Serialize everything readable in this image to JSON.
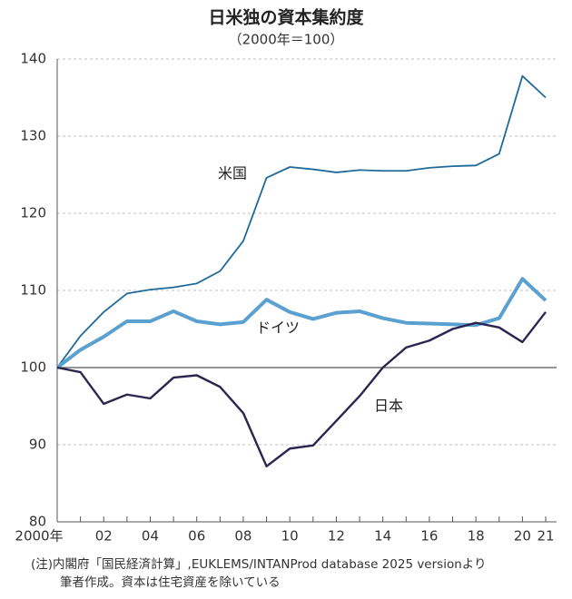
{
  "chart_data": {
    "type": "line",
    "title": "日米独の資本集約度",
    "subtitle": "（2000年＝100）",
    "categories": [
      "2000年",
      null,
      "02",
      null,
      "04",
      null,
      "06",
      null,
      "08",
      null,
      "10",
      null,
      "12",
      null,
      "14",
      null,
      "16",
      null,
      "18",
      null,
      "20",
      "21"
    ],
    "series": [
      {
        "name": "米国",
        "color": "#1f6a9a",
        "values": [
          100,
          104.1,
          107.2,
          109.6,
          110.1,
          110.4,
          110.9,
          112.5,
          116.4,
          124.6,
          126,
          125.7,
          125.3,
          125.6,
          125.5,
          125.5,
          125.9,
          126.1,
          126.2,
          127.7,
          137.8,
          135
        ]
      },
      {
        "name": "ドイツ",
        "color": "#5aa0d0",
        "values": [
          100,
          102.3,
          104,
          106,
          106,
          107.3,
          106,
          105.6,
          105.9,
          108.8,
          107.2,
          106.3,
          107.1,
          107.3,
          106.4,
          105.8,
          105.7,
          105.6,
          105.5,
          106.4,
          111.5,
          108.7
        ]
      },
      {
        "name": "日本",
        "color": "#2a2650",
        "values": [
          100,
          99.4,
          95.3,
          96.5,
          96,
          98.7,
          99,
          97.5,
          94.1,
          87.2,
          89.5,
          89.9,
          93.1,
          96.3,
          100,
          102.6,
          103.5,
          105,
          105.8,
          105.2,
          103.3,
          107.2
        ]
      }
    ],
    "ylim": [
      80,
      140
    ],
    "yticks": [
      80,
      90,
      100,
      110,
      120,
      130,
      140
    ],
    "grid": true,
    "baseline": 100,
    "notes": [
      "(注)内閣府「国民経済計算」,EUKLEMS/INTANProd database 2025 versionより",
      "筆者作成。資本は住宅資産を除いている"
    ]
  }
}
